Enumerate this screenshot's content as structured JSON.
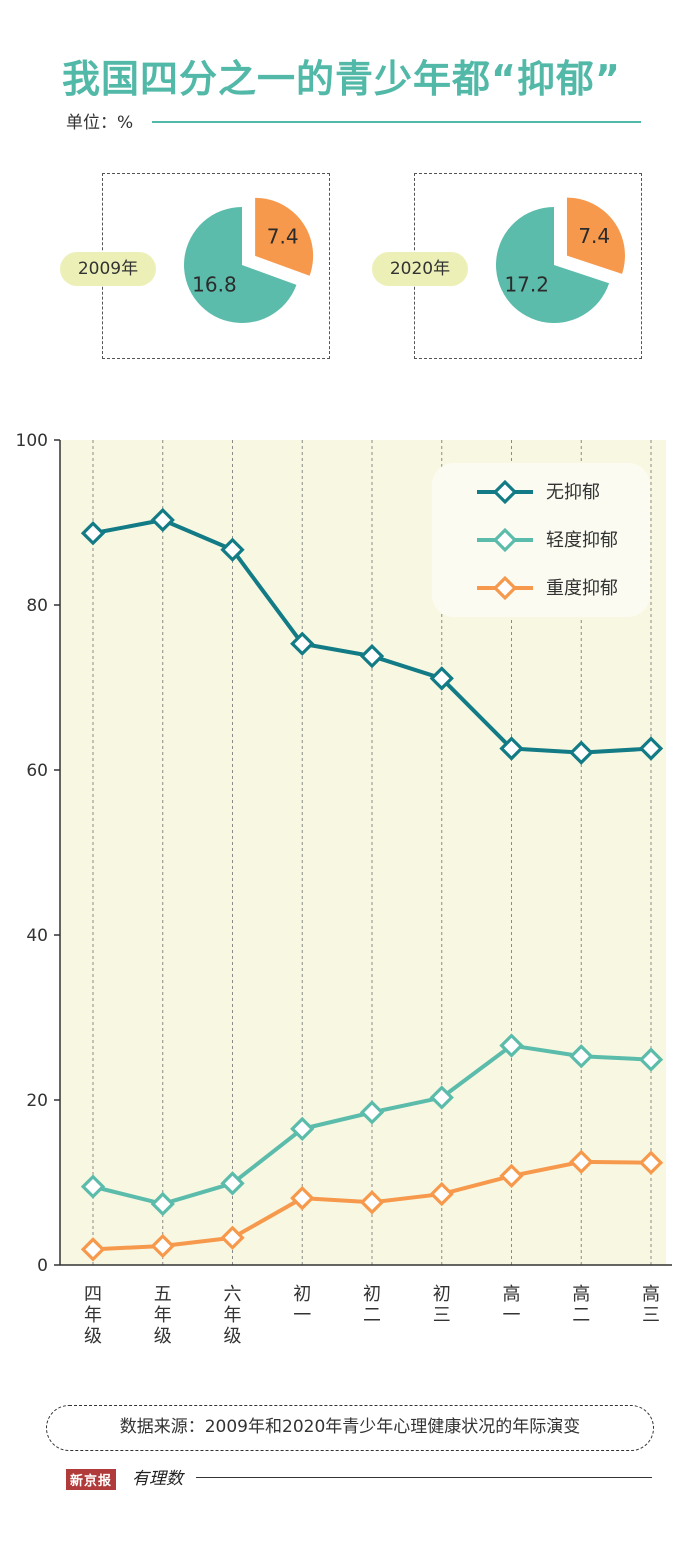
{
  "title": "我国四分之一的青少年都“抑郁”",
  "unit_label": "单位：%",
  "source": "数据来源：2009年和2020年青少年心理健康状况的年际演变",
  "logo": {
    "brand": "新京报",
    "sub": "有理数"
  },
  "colors": {
    "none": "#127b85",
    "mild": "#5cbcab",
    "severe": "#f6994c",
    "plot_bg": "#f8f8e2",
    "pill_bg": "#ecf0b6",
    "legend_bg": "#fbfbf2"
  },
  "chart_data": [
    {
      "type": "pie",
      "label": "2009年",
      "slices": [
        {
          "value": 7.4,
          "color": "#f6994c"
        },
        {
          "value": 16.8,
          "color": "#5cbcab"
        }
      ]
    },
    {
      "type": "pie",
      "label": "2020年",
      "slices": [
        {
          "value": 7.4,
          "color": "#f6994c"
        },
        {
          "value": 17.2,
          "color": "#5cbcab"
        }
      ]
    },
    {
      "type": "line",
      "categories": [
        "四年级",
        "五年级",
        "六年级",
        "初一",
        "初二",
        "初三",
        "高一",
        "高二",
        "高三"
      ],
      "ylim": [
        0,
        100
      ],
      "yticks": [
        0,
        20,
        40,
        60,
        80,
        100
      ],
      "grid": "vertical dashed lines at categories",
      "legend_position": "top-right",
      "series": [
        {
          "name": "无抑郁",
          "color": "#127b85",
          "values": [
            88.7,
            90.3,
            86.7,
            75.3,
            73.8,
            71.1,
            62.6,
            62.1,
            62.6
          ]
        },
        {
          "name": "轻度抑郁",
          "color": "#5cbcab",
          "values": [
            9.5,
            7.4,
            9.9,
            16.5,
            18.5,
            20.3,
            26.6,
            25.3,
            24.9
          ]
        },
        {
          "name": "重度抑郁",
          "color": "#f6994c",
          "values": [
            1.9,
            2.3,
            3.3,
            8.1,
            7.6,
            8.6,
            10.8,
            12.5,
            12.4
          ]
        }
      ]
    }
  ]
}
